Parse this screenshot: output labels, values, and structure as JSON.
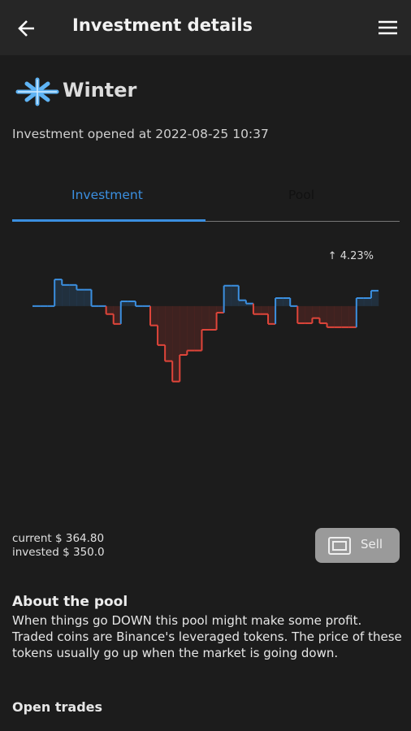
{
  "header": {
    "title": "Investment details"
  },
  "pool_name": "Winter",
  "opened": "Investment opened at 2022-08-25 10:37",
  "tabs": [
    "Investment",
    "Pool"
  ],
  "chart_data": {
    "type": "line",
    "values": [
      0,
      0,
      0,
      7.3,
      5.8,
      5.8,
      4.5,
      4.5,
      0,
      0,
      -2.2,
      -4.9,
      1.3,
      1.3,
      0,
      0,
      -5.3,
      -10.7,
      -15.1,
      -20.7,
      -13.4,
      -12.2,
      -12.2,
      -6.5,
      -6.5,
      -1.8,
      5.6,
      5.6,
      1.6,
      0.7,
      -2.2,
      -2.2,
      -4.9,
      2.2,
      2.2,
      0,
      -4.7,
      -4.7,
      -3.3,
      -4.7,
      -5.8,
      -5.8,
      -5.8,
      -5.8,
      2.2,
      2.2,
      4.23
    ],
    "change_label": "↑ 4.23%",
    "ylim": [
      -25,
      10
    ],
    "up_color": "#3b8fe0",
    "down_color": "#e0453a"
  },
  "current": "current $ 364.80",
  "invested": "invested $ 350.0",
  "sell": "Sell",
  "about": {
    "title": "About the pool",
    "text": "When things go DOWN this pool might make some profit. Traded coins are Binance's leveraged tokens. The price of these tokens usually go up when the market is going down."
  },
  "open_trades": "Open trades"
}
